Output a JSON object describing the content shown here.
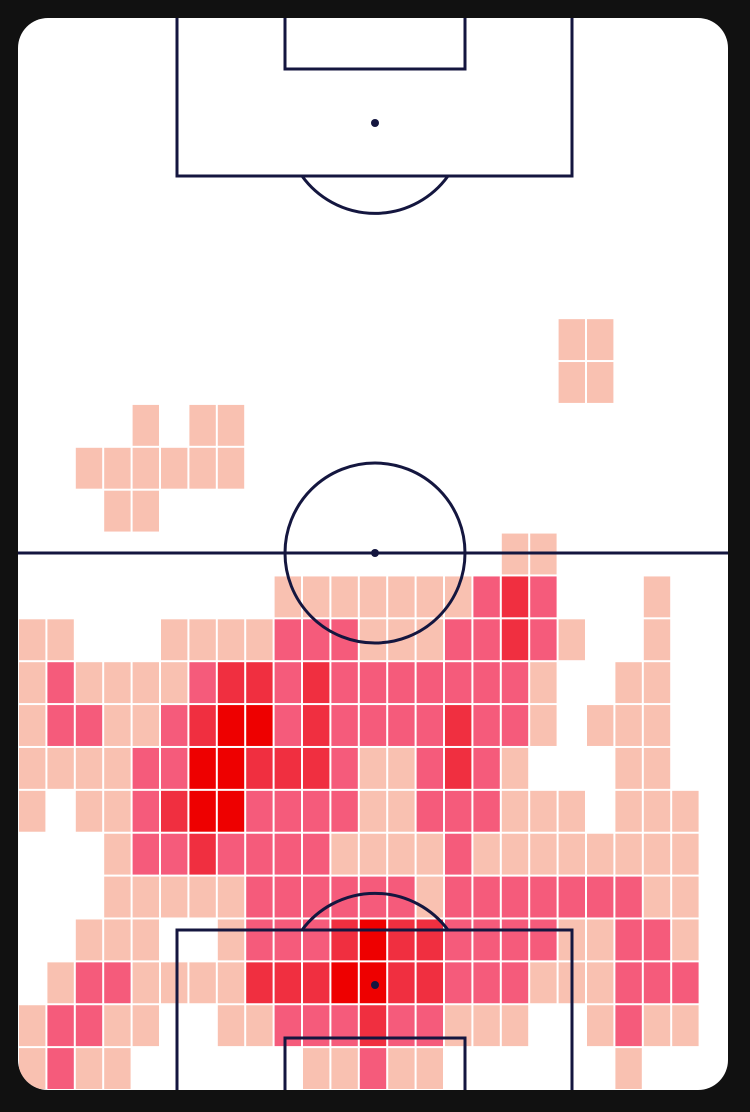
{
  "chart_data": {
    "type": "heatmap",
    "colors": [
      "#f9c1b1",
      "#f55b7b",
      "#f02f40",
      "#ee0000"
    ],
    "values": [
      [
        0,
        0,
        0,
        0,
        0,
        0,
        0,
        0,
        0,
        0,
        0,
        0,
        0,
        0,
        0,
        0,
        0,
        0,
        0,
        0,
        0,
        0,
        0,
        0,
        0
      ],
      [
        0,
        0,
        0,
        0,
        0,
        0,
        0,
        0,
        0,
        0,
        0,
        0,
        0,
        0,
        0,
        0,
        0,
        0,
        0,
        0,
        0,
        0,
        0,
        0,
        0
      ],
      [
        0,
        0,
        0,
        0,
        0,
        0,
        0,
        0,
        0,
        0,
        0,
        0,
        0,
        0,
        0,
        0,
        0,
        0,
        0,
        0,
        0,
        0,
        0,
        0,
        0
      ],
      [
        0,
        0,
        0,
        0,
        0,
        0,
        0,
        0,
        0,
        0,
        0,
        0,
        0,
        0,
        0,
        0,
        0,
        0,
        0,
        0,
        0,
        0,
        0,
        0,
        0
      ],
      [
        0,
        0,
        0,
        0,
        0,
        0,
        0,
        0,
        0,
        0,
        0,
        0,
        0,
        0,
        0,
        0,
        0,
        0,
        0,
        0,
        0,
        0,
        0,
        0,
        0
      ],
      [
        0,
        0,
        0,
        0,
        0,
        0,
        0,
        0,
        0,
        0,
        0,
        0,
        0,
        0,
        0,
        0,
        0,
        0,
        0,
        0,
        0,
        0,
        0,
        0,
        0
      ],
      [
        0,
        0,
        0,
        0,
        0,
        0,
        0,
        0,
        0,
        0,
        0,
        0,
        0,
        0,
        0,
        0,
        0,
        0,
        0,
        0,
        0,
        0,
        0,
        0,
        0
      ],
      [
        0,
        0,
        0,
        0,
        0,
        0,
        0,
        0,
        0,
        0,
        0,
        0,
        0,
        0,
        0,
        0,
        0,
        0,
        0,
        1,
        1,
        0,
        0,
        0,
        0
      ],
      [
        0,
        0,
        0,
        0,
        0,
        0,
        0,
        0,
        0,
        0,
        0,
        0,
        0,
        0,
        0,
        0,
        0,
        0,
        0,
        1,
        1,
        0,
        0,
        0,
        0
      ],
      [
        0,
        0,
        0,
        0,
        1,
        0,
        1,
        1,
        0,
        0,
        0,
        0,
        0,
        0,
        0,
        0,
        0,
        0,
        0,
        0,
        0,
        0,
        0,
        0,
        0
      ],
      [
        0,
        0,
        1,
        1,
        1,
        1,
        1,
        1,
        0,
        0,
        0,
        0,
        0,
        0,
        0,
        0,
        0,
        0,
        0,
        0,
        0,
        0,
        0,
        0,
        0
      ],
      [
        0,
        0,
        0,
        1,
        1,
        0,
        0,
        0,
        0,
        0,
        0,
        0,
        0,
        0,
        0,
        0,
        0,
        0,
        0,
        0,
        0,
        0,
        0,
        0,
        0
      ],
      [
        0,
        0,
        0,
        0,
        0,
        0,
        0,
        0,
        0,
        0,
        0,
        0,
        0,
        0,
        0,
        0,
        0,
        1,
        1,
        0,
        0,
        0,
        0,
        0,
        0
      ],
      [
        0,
        0,
        0,
        0,
        0,
        0,
        0,
        0,
        0,
        1,
        1,
        1,
        1,
        1,
        1,
        1,
        2,
        3,
        2,
        0,
        0,
        0,
        1,
        0,
        0
      ],
      [
        1,
        1,
        0,
        0,
        0,
        1,
        1,
        1,
        1,
        2,
        2,
        2,
        1,
        1,
        1,
        2,
        2,
        3,
        2,
        1,
        0,
        0,
        1,
        0,
        0
      ],
      [
        1,
        2,
        1,
        1,
        1,
        1,
        2,
        3,
        3,
        2,
        3,
        2,
        2,
        2,
        2,
        2,
        2,
        2,
        1,
        0,
        0,
        1,
        1,
        0,
        0
      ],
      [
        1,
        2,
        2,
        1,
        1,
        2,
        3,
        4,
        4,
        2,
        3,
        2,
        2,
        2,
        2,
        3,
        2,
        2,
        1,
        0,
        1,
        1,
        1,
        0,
        0
      ],
      [
        1,
        1,
        1,
        1,
        2,
        2,
        4,
        4,
        3,
        3,
        3,
        2,
        1,
        1,
        2,
        3,
        2,
        1,
        0,
        0,
        0,
        1,
        1,
        0,
        0
      ],
      [
        1,
        0,
        1,
        1,
        2,
        3,
        4,
        4,
        2,
        2,
        2,
        2,
        1,
        1,
        2,
        2,
        2,
        1,
        1,
        1,
        0,
        1,
        1,
        1,
        0
      ],
      [
        0,
        0,
        0,
        1,
        2,
        2,
        3,
        2,
        2,
        2,
        2,
        1,
        1,
        1,
        1,
        2,
        1,
        1,
        1,
        1,
        1,
        1,
        1,
        1,
        0
      ],
      [
        0,
        0,
        0,
        1,
        1,
        1,
        1,
        1,
        2,
        2,
        2,
        2,
        2,
        2,
        1,
        2,
        2,
        2,
        2,
        2,
        2,
        2,
        1,
        1,
        0
      ],
      [
        0,
        0,
        1,
        1,
        1,
        0,
        0,
        1,
        2,
        2,
        2,
        3,
        4,
        3,
        3,
        2,
        2,
        2,
        2,
        1,
        1,
        2,
        2,
        1,
        0
      ],
      [
        0,
        1,
        2,
        2,
        1,
        1,
        1,
        1,
        3,
        3,
        3,
        4,
        4,
        3,
        3,
        2,
        2,
        2,
        1,
        1,
        1,
        2,
        2,
        2,
        0
      ],
      [
        1,
        2,
        2,
        1,
        1,
        0,
        0,
        1,
        1,
        2,
        2,
        2,
        3,
        2,
        2,
        1,
        1,
        1,
        0,
        0,
        1,
        2,
        1,
        1,
        0
      ],
      [
        1,
        2,
        1,
        1,
        0,
        0,
        0,
        0,
        0,
        0,
        1,
        1,
        2,
        1,
        1,
        0,
        0,
        0,
        0,
        0,
        0,
        1,
        0,
        0,
        0
      ]
    ]
  }
}
